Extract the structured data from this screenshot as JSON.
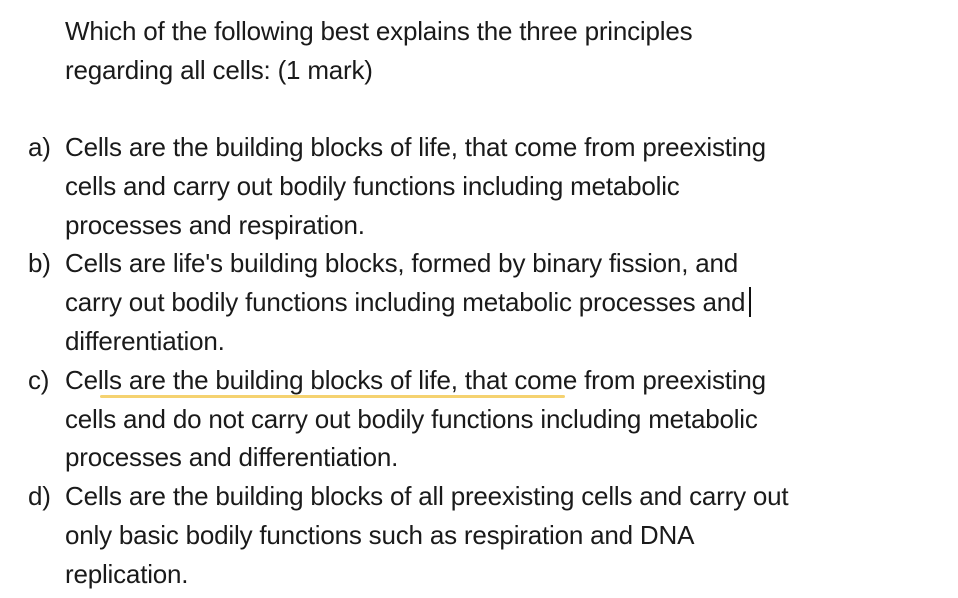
{
  "question": {
    "line1": "Which of the following best explains the three principles",
    "line2": "regarding all cells: (1 mark)"
  },
  "options": [
    {
      "marker": "a)",
      "lines": [
        "Cells are the building blocks of life, that come from preexisting",
        "cells and carry out bodily functions including metabolic",
        "processes and respiration."
      ]
    },
    {
      "marker": "b)",
      "lines": [
        "Cells are life's building blocks, formed by binary fission, and",
        "carry out bodily functions including metabolic processes and",
        "differentiation."
      ]
    },
    {
      "marker": "c)",
      "lines": [
        "Cells are the building blocks of life, that come from preexisting",
        "cells and do not carry out bodily functions including metabolic",
        "processes and differentiation."
      ]
    },
    {
      "marker": "d)",
      "lines": [
        "Cells are the building blocks of all preexisting cells and carry out",
        "only basic bodily functions such as respiration and DNA",
        "replication."
      ]
    }
  ],
  "colors": {
    "text": "#1a1a1a",
    "highlight_underline": "#f5d270"
  }
}
